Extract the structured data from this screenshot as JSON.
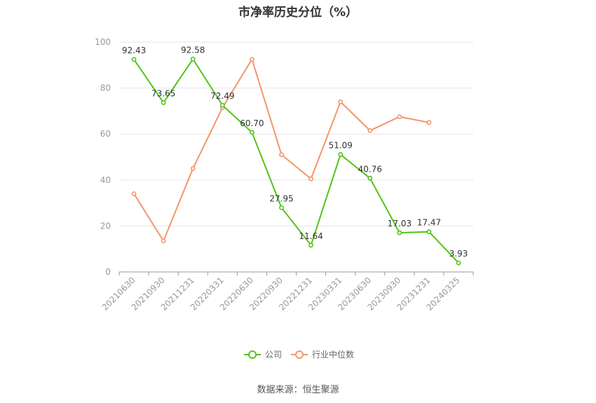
{
  "chart_data": {
    "type": "line",
    "title": "市净率历史分位（%）",
    "categories": [
      "20210630",
      "20210930",
      "20211231",
      "20220331",
      "20220630",
      "20220930",
      "20221231",
      "20230331",
      "20230630",
      "20230930",
      "20231231",
      "20240325"
    ],
    "ylim": [
      0,
      100
    ],
    "yticks": [
      0,
      20,
      40,
      60,
      80,
      100
    ],
    "grid": true,
    "legend_placement": "bottom-center",
    "series": [
      {
        "name": "公司",
        "color": "#52c41a",
        "values": [
          92.43,
          73.65,
          92.58,
          72.49,
          60.7,
          27.95,
          11.64,
          51.09,
          40.76,
          17.03,
          17.47,
          3.93
        ],
        "labels": [
          "92.43",
          "73.65",
          "92.58",
          "72.49",
          "60.70",
          "27.95",
          "11.64",
          "51.09",
          "40.76",
          "17.03",
          "17.47",
          "3.93"
        ]
      },
      {
        "name": "行业中位数",
        "color": "#f4956a",
        "values": [
          34,
          13.5,
          45,
          71.5,
          92.5,
          51,
          40.5,
          74,
          61.5,
          67.5,
          65,
          null
        ]
      }
    ]
  },
  "source": "数据来源：恒生聚源"
}
